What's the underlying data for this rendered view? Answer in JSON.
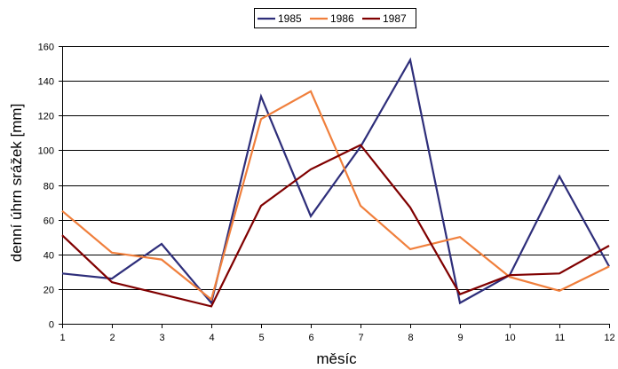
{
  "chart_data": {
    "type": "line",
    "title": "",
    "xlabel": "měsíc",
    "ylabel": "denní úhrn srážek [mm]",
    "categories": [
      "1",
      "2",
      "3",
      "4",
      "5",
      "6",
      "7",
      "8",
      "9",
      "10",
      "11",
      "12"
    ],
    "ylim": [
      0,
      160
    ],
    "yticks": [
      0,
      20,
      40,
      60,
      80,
      100,
      120,
      140,
      160
    ],
    "grid": true,
    "legend_position": "top-center",
    "series": [
      {
        "name": "1985",
        "color": "#2e2e7a",
        "values": [
          29,
          26,
          46,
          12,
          131,
          62,
          102,
          152,
          12,
          28,
          85,
          33
        ]
      },
      {
        "name": "1986",
        "color": "#f07f3c",
        "values": [
          65,
          41,
          37,
          14,
          118,
          134,
          68,
          43,
          50,
          27,
          19,
          33
        ]
      },
      {
        "name": "1987",
        "color": "#800000",
        "values": [
          51,
          24,
          17,
          10,
          68,
          89,
          103,
          67,
          17,
          28,
          29,
          45
        ]
      }
    ]
  }
}
